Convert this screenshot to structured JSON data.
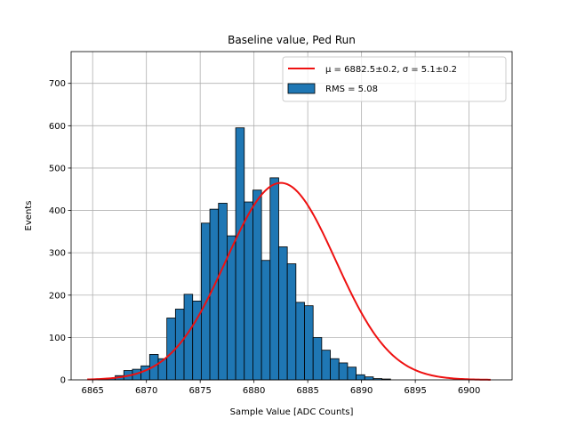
{
  "chart_data": {
    "type": "bar",
    "title": "Baseline value, Ped Run",
    "xlabel": "Sample Value [ADC Counts]",
    "ylabel": "Events",
    "xlim": [
      6863,
      6904
    ],
    "ylim": [
      0,
      775
    ],
    "xticks": [
      6865,
      6870,
      6875,
      6880,
      6885,
      6890,
      6895,
      6900
    ],
    "yticks": [
      0,
      100,
      200,
      300,
      400,
      500,
      600,
      700
    ],
    "grid": true,
    "legend_position": "top-right",
    "histogram": {
      "name": "RMS = 5.08",
      "bin_start": 6864.7,
      "bin_width": 0.8,
      "counts": [
        0,
        2,
        4,
        10,
        22,
        25,
        33,
        60,
        50,
        146,
        167,
        202,
        186,
        370,
        403,
        417,
        340,
        595,
        420,
        448,
        282,
        477,
        314,
        274,
        183,
        175,
        100,
        70,
        50,
        40,
        30,
        12,
        7,
        3,
        2,
        0
      ]
    },
    "fit": {
      "name": "$\\mu = 6882.5$±0.2, $\\sigma = 5.1$±0.2",
      "label_mu": "μ = 6882.5±0.2",
      "label_sigma": "σ = 5.1±0.2",
      "mu": 6882.5,
      "sigma": 5.1,
      "amplitude": 465,
      "x_range": [
        6864.5,
        6902
      ]
    },
    "colors": {
      "bar_fill": "#1f77b4",
      "bar_edge": "#000000",
      "fit_line": "#ee1111",
      "grid": "#b0b0b0"
    }
  }
}
